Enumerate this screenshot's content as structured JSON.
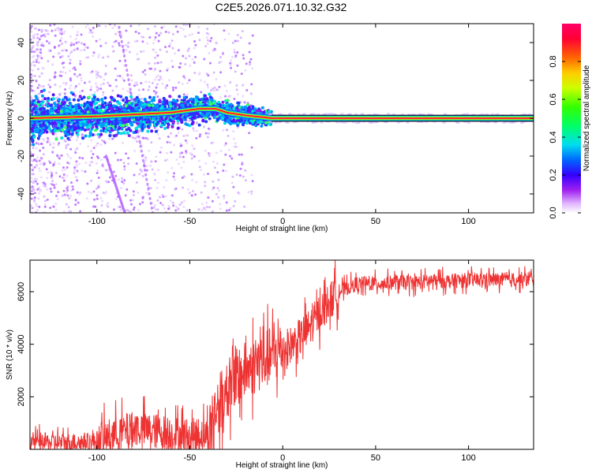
{
  "chart_data": [
    {
      "type": "heatmap",
      "title": "C2E5.2026.071.10.32.G32",
      "xlabel": "Height of straight line (km)",
      "ylabel": "Frequency (Hz)",
      "xlim": [
        -136,
        135
      ],
      "ylim": [
        -50,
        50
      ],
      "x_ticks": [
        -100,
        -50,
        0,
        50,
        100
      ],
      "y_ticks": [
        -40,
        -20,
        0,
        20,
        40
      ],
      "dominant_line": {
        "name": "Carrier frequency track",
        "points": [
          {
            "x": -136,
            "y": 0
          },
          {
            "x": -100,
            "y": 1
          },
          {
            "x": -60,
            "y": 3
          },
          {
            "x": -45,
            "y": 5
          },
          {
            "x": -36,
            "y": 5
          },
          {
            "x": -30,
            "y": 3
          },
          {
            "x": -20,
            "y": 1.5
          },
          {
            "x": -10,
            "y": 0.5
          },
          {
            "x": -6,
            "y": 0
          },
          {
            "x": 0,
            "y": 0
          },
          {
            "x": 135,
            "y": 0
          }
        ]
      },
      "colorbar": {
        "label": "Normalized spectral amplitude",
        "range": [
          0.0,
          1.0
        ],
        "ticks": [
          0.0,
          0.2,
          0.4,
          0.6,
          0.8
        ]
      }
    },
    {
      "type": "line",
      "title": "",
      "xlabel": "Height of straight line (km)",
      "ylabel": "SNR (10 * v/v)",
      "xlim": [
        -136,
        135
      ],
      "ylim": [
        0,
        7200
      ],
      "x_ticks": [
        -100,
        -50,
        0,
        50,
        100
      ],
      "y_ticks": [
        2000,
        4000,
        6000
      ],
      "series": [
        {
          "name": "SNR",
          "color": "#ee3333",
          "x": [
            -136,
            -120,
            -100,
            -90,
            -80,
            -70,
            -60,
            -50,
            -40,
            -35,
            -30,
            -25,
            -20,
            -15,
            -10,
            -5,
            0,
            5,
            10,
            15,
            20,
            25,
            30,
            40,
            50,
            60,
            70,
            80,
            90,
            100,
            110,
            120,
            135
          ],
          "y": [
            300,
            250,
            300,
            600,
            800,
            700,
            600,
            500,
            600,
            1700,
            2300,
            2700,
            3000,
            3200,
            3400,
            3600,
            3800,
            4000,
            4300,
            4700,
            5200,
            5600,
            6000,
            6300,
            6300,
            6350,
            6350,
            6400,
            6400,
            6450,
            6450,
            6450,
            6500
          ]
        }
      ]
    }
  ]
}
